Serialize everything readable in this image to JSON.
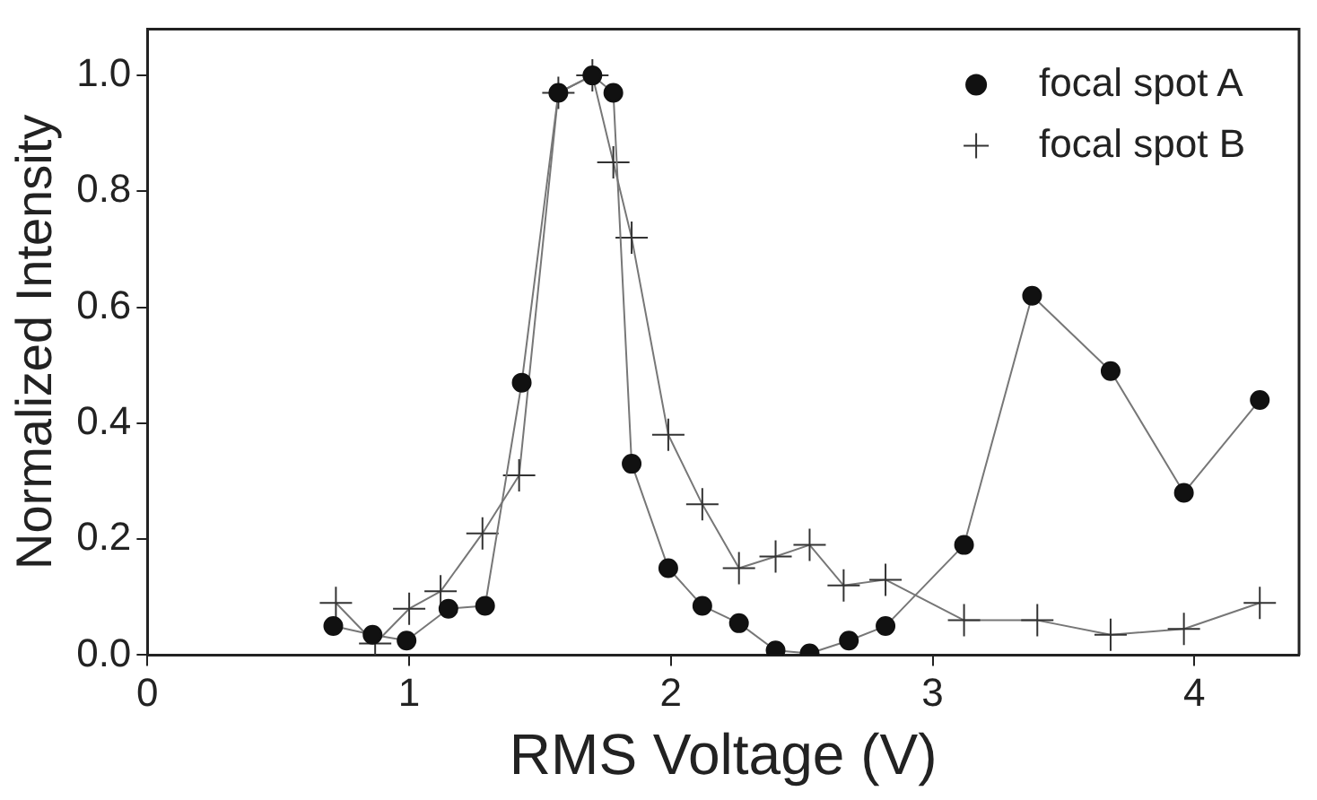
{
  "chart_data": {
    "type": "line",
    "xlabel": "RMS Voltage (V)",
    "ylabel": "Normalized Intensity",
    "xlim": [
      0,
      4.4
    ],
    "xticks": [
      0,
      1,
      2,
      3,
      4
    ],
    "ylim": [
      0,
      1.08
    ],
    "yticks": [
      {
        "value": 0,
        "label": "0.0"
      },
      {
        "value": 0.2,
        "label": "0.2"
      },
      {
        "value": 0.4,
        "label": "0.4"
      },
      {
        "value": 0.6,
        "label": "0.6"
      },
      {
        "value": 0.8,
        "label": "0.8"
      },
      {
        "value": 1,
        "label": "1.0"
      }
    ],
    "grid": false,
    "legend": "top right",
    "series": [
      {
        "name": "focal spot A",
        "color": "#111111",
        "marker": "circle",
        "x": [
          0.71,
          0.86,
          0.99,
          1.15,
          1.29,
          1.43,
          1.57,
          1.7,
          1.78,
          1.85,
          1.99,
          2.12,
          2.26,
          2.4,
          2.53,
          2.68,
          2.82,
          3.12,
          3.38,
          3.68,
          3.96,
          4.25
        ],
        "values": [
          0.05,
          0.035,
          0.025,
          0.08,
          0.085,
          0.47,
          0.97,
          1.0,
          0.97,
          0.33,
          0.15,
          0.085,
          0.055,
          0.008,
          0.003,
          0.025,
          0.05,
          0.19,
          0.62,
          0.49,
          0.28,
          0.44
        ]
      },
      {
        "name": "focal spot B",
        "color": "#333333",
        "marker": "cross",
        "x": [
          0.72,
          0.87,
          1.0,
          1.12,
          1.28,
          1.42,
          1.57,
          1.7,
          1.78,
          1.85,
          1.99,
          2.12,
          2.26,
          2.4,
          2.53,
          2.66,
          2.82,
          3.12,
          3.4,
          3.68,
          3.96,
          4.25
        ],
        "values": [
          0.09,
          0.02,
          0.08,
          0.11,
          0.21,
          0.31,
          0.97,
          1.0,
          0.85,
          0.72,
          0.38,
          0.26,
          0.15,
          0.17,
          0.19,
          0.12,
          0.13,
          0.06,
          0.06,
          0.035,
          0.045,
          0.09
        ]
      }
    ]
  }
}
